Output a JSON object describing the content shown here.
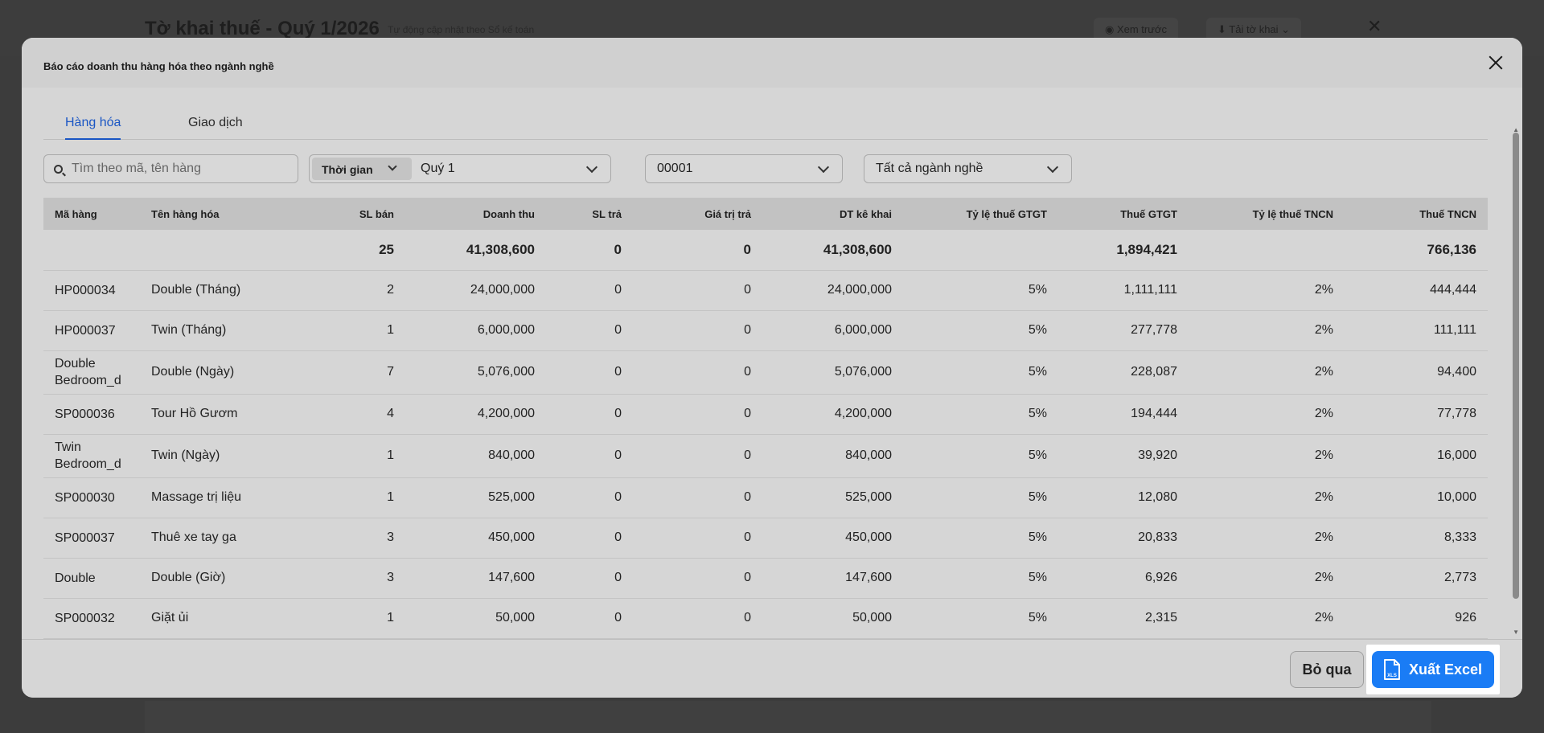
{
  "background": {
    "title": "Tờ khai thuế - Quý 1/2026",
    "subtitle": "Tự động cập nhật theo Sổ kế toán",
    "preview_label": "Xem trước",
    "download_label": "Tải tờ khai"
  },
  "modal": {
    "title": "Báo cáo doanh thu hàng hóa theo ngành nghề"
  },
  "tabs": [
    {
      "label": "Hàng hóa",
      "active": true
    },
    {
      "label": "Giao dịch",
      "active": false
    }
  ],
  "filters": {
    "search_placeholder": "Tìm theo mã, tên hàng",
    "time_label": "Thời gian",
    "time_value": "Quý 1",
    "code_value": "00001",
    "industry_value": "Tất cả ngành nghề"
  },
  "table": {
    "headers": [
      "Mã hàng",
      "Tên hàng hóa",
      "SL bán",
      "Doanh thu",
      "SL trả",
      "Giá trị trả",
      "DT kê khai",
      "Tỷ lệ thuế GTGT",
      "Thuế GTGT",
      "Tỷ lệ thuế TNCN",
      "Thuế TNCN"
    ],
    "summary": [
      "",
      "",
      "25",
      "41,308,600",
      "0",
      "0",
      "41,308,600",
      "",
      "1,894,421",
      "",
      "766,136"
    ],
    "rows": [
      [
        "HP000034",
        "Double (Tháng)",
        "2",
        "24,000,000",
        "0",
        "0",
        "24,000,000",
        "5%",
        "1,111,111",
        "2%",
        "444,444"
      ],
      [
        "HP000037",
        "Twin (Tháng)",
        "1",
        "6,000,000",
        "0",
        "0",
        "6,000,000",
        "5%",
        "277,778",
        "2%",
        "111,111"
      ],
      [
        "Double Bedroom_d",
        "Double (Ngày)",
        "7",
        "5,076,000",
        "0",
        "0",
        "5,076,000",
        "5%",
        "228,087",
        "2%",
        "94,400"
      ],
      [
        "SP000036",
        "Tour Hồ Gươm",
        "4",
        "4,200,000",
        "0",
        "0",
        "4,200,000",
        "5%",
        "194,444",
        "2%",
        "77,778"
      ],
      [
        "Twin Bedroom_d",
        "Twin (Ngày)",
        "1",
        "840,000",
        "0",
        "0",
        "840,000",
        "5%",
        "39,920",
        "2%",
        "16,000"
      ],
      [
        "SP000030",
        "Massage trị liệu",
        "1",
        "525,000",
        "0",
        "0",
        "525,000",
        "5%",
        "12,080",
        "2%",
        "10,000"
      ],
      [
        "SP000037",
        "Thuê xe tay ga",
        "3",
        "450,000",
        "0",
        "0",
        "450,000",
        "5%",
        "20,833",
        "2%",
        "8,333"
      ],
      [
        "Double",
        "Double (Giờ)",
        "3",
        "147,600",
        "0",
        "0",
        "147,600",
        "5%",
        "6,926",
        "2%",
        "2,773"
      ],
      [
        "SP000032",
        "Giặt ủi",
        "1",
        "50,000",
        "0",
        "0",
        "50,000",
        "5%",
        "2,315",
        "2%",
        "926"
      ]
    ]
  },
  "footer": {
    "skip_label": "Bỏ qua",
    "export_label": "Xuất Excel",
    "export_icon_text": "XLS"
  },
  "colors": {
    "accent": "#1a56c4",
    "export_button": "#1a7cf5"
  }
}
